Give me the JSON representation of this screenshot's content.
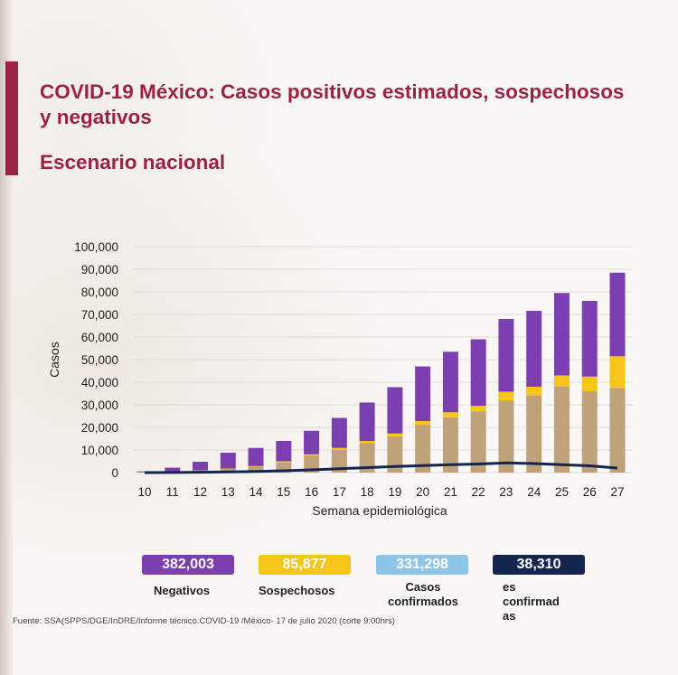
{
  "header": {
    "title": "COVID-19 México: Casos positivos estimados, sospechosos y negativos",
    "subtitle": "Escenario nacional"
  },
  "colors": {
    "brand": "#9b2242",
    "negativos": "#7b3fb0",
    "sospechosos": "#f5c518",
    "confirmados": "#bfa27a",
    "defunciones_line": "#14254f",
    "confirmados_box": "#8ec5e8",
    "defunciones_box": "#14254f"
  },
  "chart_data": {
    "type": "bar",
    "stacked": true,
    "xlabel": "Semana epidemiológica",
    "ylabel": "Casos",
    "ylim": [
      0,
      100000
    ],
    "yticks": [
      "0",
      "10,000",
      "20,000",
      "30,000",
      "40,000",
      "50,000",
      "60,000",
      "70,000",
      "80,000",
      "90,000",
      "100,000"
    ],
    "categories": [
      "10",
      "11",
      "12",
      "13",
      "14",
      "15",
      "16",
      "17",
      "18",
      "19",
      "20",
      "21",
      "22",
      "23",
      "24",
      "25",
      "26",
      "27"
    ],
    "series": [
      {
        "name": "Casos confirmados",
        "kind": "bar",
        "values": [
          200,
          400,
          900,
          1600,
          2600,
          4500,
          7400,
          10000,
          13000,
          16000,
          21000,
          24500,
          27000,
          32000,
          34000,
          38000,
          36000,
          37500
        ]
      },
      {
        "name": "Sospechosos",
        "kind": "bar",
        "values": [
          30,
          60,
          100,
          200,
          300,
          500,
          700,
          900,
          1000,
          1300,
          1800,
          2200,
          2600,
          3800,
          4000,
          5000,
          6500,
          14000
        ]
      },
      {
        "name": "Negativos",
        "kind": "bar",
        "values": [
          300,
          1700,
          3800,
          7000,
          8000,
          9000,
          10400,
          13300,
          17000,
          20500,
          24200,
          26800,
          29400,
          32200,
          33600,
          36500,
          33500,
          37000
        ]
      },
      {
        "name": "Defunciones confirmadas",
        "kind": "line",
        "values": [
          0,
          50,
          150,
          300,
          500,
          800,
          1200,
          1700,
          2200,
          2700,
          3100,
          3500,
          3800,
          4300,
          4000,
          3500,
          3000,
          2000
        ]
      }
    ]
  },
  "legend": {
    "negativos": {
      "value": "382,003",
      "label": "Negativos"
    },
    "sospechosos": {
      "value": "85,877",
      "label": "Sospechosos"
    },
    "confirmados": {
      "value": "331,298",
      "label": "Casos confirmados"
    },
    "defunciones": {
      "value": "38,310",
      "label": "es confirmad as"
    }
  },
  "source": "Fuente: SSA(SPPS/DGE/InDRE/Informe técnico.COVID-19 /México- 17 de julio 2020 (corte 9:00hrs)"
}
